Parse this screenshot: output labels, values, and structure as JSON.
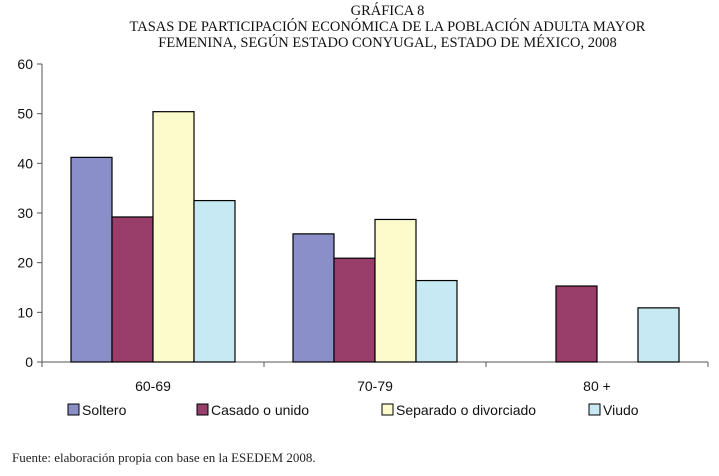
{
  "chart_data": {
    "type": "bar",
    "title_lines": [
      "GRÁFICA 8",
      "TASAS DE PARTICIPACIÓN ECONÓMICA DE LA POBLACIÓN ADULTA MAYOR",
      "FEMENINA, SEGÚN ESTADO CONYUGAL, ESTADO DE MÉXICO, 2008"
    ],
    "categories": [
      "60-69",
      "70-79",
      "80 +"
    ],
    "series": [
      {
        "name": "Soltero",
        "color": "#8b8fc9",
        "values": [
          41.2,
          25.8,
          0
        ]
      },
      {
        "name": "Casado o unido",
        "color": "#993e6a",
        "values": [
          29.2,
          20.9,
          15.3
        ]
      },
      {
        "name": "Separado o divorciado",
        "color": "#fbfbcc",
        "values": [
          50.4,
          28.7,
          0
        ]
      },
      {
        "name": "Viudo",
        "color": "#c7e9f3",
        "values": [
          32.5,
          16.4,
          10.9
        ]
      }
    ],
    "ylim": [
      0,
      60
    ],
    "yticks": [
      "0",
      "10",
      "20",
      "30",
      "40",
      "50",
      "60"
    ],
    "grid": false,
    "legend": "bottom"
  },
  "source_note": "Fuente: elaboración propia con base en la ESEDEM 2008."
}
